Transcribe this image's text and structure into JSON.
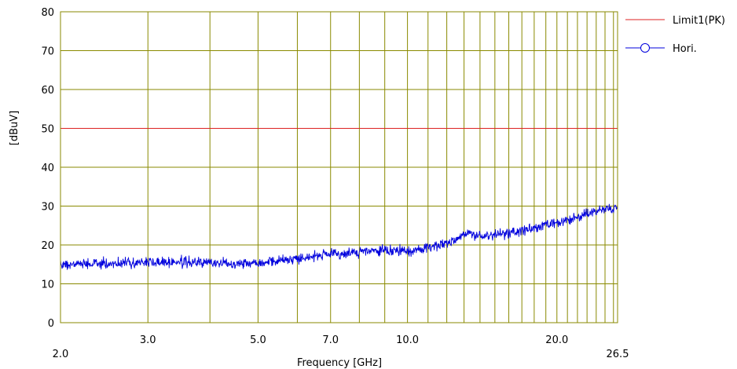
{
  "chart_data": {
    "type": "line",
    "title": "",
    "xlabel": "Frequency [GHz]",
    "ylabel": "[dBuV]",
    "x_scale": "log",
    "xlim": [
      2.0,
      26.5
    ],
    "ylim": [
      0,
      80
    ],
    "grid": true,
    "legend_position": "right",
    "x_tick_labels": [
      "2.0",
      "3.0",
      "5.0",
      "7.0",
      "10.0",
      "20.0",
      "26.5"
    ],
    "y_tick_labels": [
      "0",
      "10",
      "20",
      "30",
      "40",
      "50",
      "60",
      "70",
      "80"
    ],
    "series": [
      {
        "name": "Limit1(PK)",
        "color": "#dd2222",
        "x": [
          2.0,
          26.5
        ],
        "y": [
          50,
          50
        ]
      },
      {
        "name": "Hori.",
        "color": "#0000dd",
        "marker": "circle",
        "noise_amplitude": 1.2,
        "x": [
          2.0,
          2.5,
          3.0,
          3.5,
          4.0,
          4.5,
          5.0,
          5.5,
          6.0,
          6.5,
          7.0,
          7.5,
          8.0,
          8.5,
          9.0,
          9.5,
          10.0,
          10.5,
          11.0,
          11.5,
          12.0,
          12.5,
          13.0,
          13.5,
          14.0,
          15.0,
          16.0,
          17.0,
          18.0,
          19.0,
          20.0,
          21.0,
          22.0,
          23.0,
          24.0,
          25.0,
          26.5
        ],
        "y": [
          15.0,
          15.2,
          15.6,
          15.6,
          15.4,
          15.3,
          15.5,
          16.0,
          16.5,
          17.2,
          17.5,
          17.8,
          18.2,
          18.4,
          18.5,
          18.6,
          18.2,
          18.8,
          19.5,
          20.0,
          20.5,
          21.5,
          23.0,
          22.8,
          22.2,
          22.6,
          23.0,
          23.6,
          24.3,
          25.0,
          25.5,
          26.2,
          27.0,
          28.0,
          28.8,
          29.2,
          29.5
        ]
      }
    ]
  }
}
